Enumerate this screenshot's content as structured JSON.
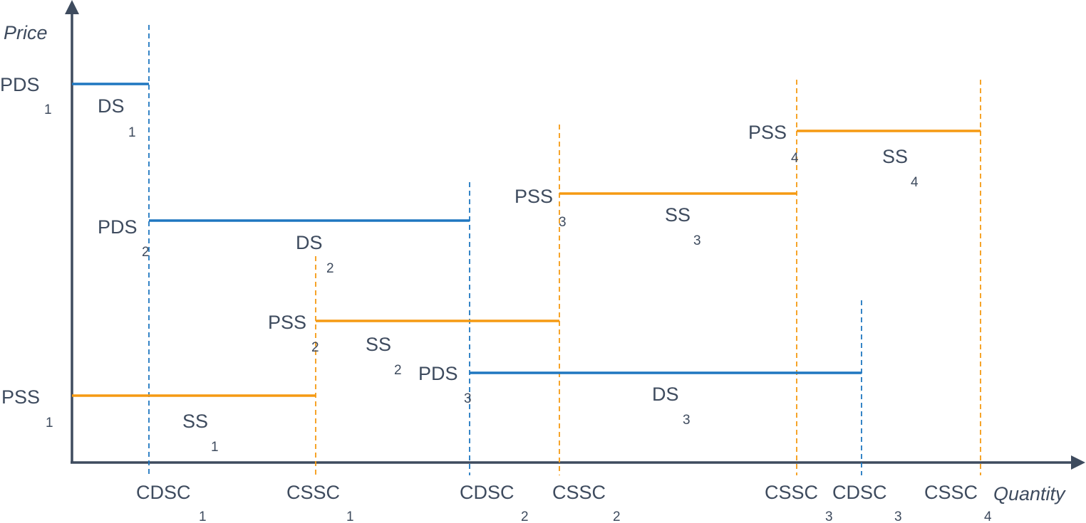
{
  "axes": {
    "y_title": "Price",
    "x_title": "Quantity"
  },
  "colors": {
    "axis": "#3e4b5e",
    "demand": "#1f77c0",
    "supply": "#f59a12",
    "text": "#3e4b5e"
  },
  "steps": [
    {
      "id": "ds1",
      "kind": "demand",
      "price_label": {
        "main": "PDS",
        "sub": "1"
      },
      "segment_label": {
        "main": "DS",
        "sub": "1"
      }
    },
    {
      "id": "ds2",
      "kind": "demand",
      "price_label": {
        "main": "PDS",
        "sub": "2"
      },
      "segment_label": {
        "main": "DS",
        "sub": "2"
      }
    },
    {
      "id": "ds3",
      "kind": "demand",
      "price_label": {
        "main": "PDS",
        "sub": "3"
      },
      "segment_label": {
        "main": "DS",
        "sub": "3"
      }
    },
    {
      "id": "ss1",
      "kind": "supply",
      "price_label": {
        "main": "PSS",
        "sub": "1"
      },
      "segment_label": {
        "main": "SS",
        "sub": "1"
      }
    },
    {
      "id": "ss2",
      "kind": "supply",
      "price_label": {
        "main": "PSS",
        "sub": "2"
      },
      "segment_label": {
        "main": "SS",
        "sub": "2"
      }
    },
    {
      "id": "ss3",
      "kind": "supply",
      "price_label": {
        "main": "PSS",
        "sub": "3"
      },
      "segment_label": {
        "main": "SS",
        "sub": "3"
      }
    },
    {
      "id": "ss4",
      "kind": "supply",
      "price_label": {
        "main": "PSS",
        "sub": "4"
      },
      "segment_label": {
        "main": "SS",
        "sub": "4"
      }
    }
  ],
  "quantity_marks": [
    {
      "id": "cdsc1",
      "kind": "demand",
      "label": {
        "main": "CDSC",
        "sub": "1"
      }
    },
    {
      "id": "cssc1",
      "kind": "supply",
      "label": {
        "main": "CSSC",
        "sub": "1"
      }
    },
    {
      "id": "cdsc2",
      "kind": "demand",
      "label": {
        "main": "CDSC",
        "sub": "2"
      }
    },
    {
      "id": "cssc2",
      "kind": "supply",
      "label": {
        "main": "CSSC",
        "sub": "2"
      }
    },
    {
      "id": "cssc3",
      "kind": "supply",
      "label": {
        "main": "CSSC",
        "sub": "3"
      }
    },
    {
      "id": "cdsc3",
      "kind": "demand",
      "label": {
        "main": "CDSC",
        "sub": "3"
      }
    },
    {
      "id": "cssc4",
      "kind": "supply",
      "label": {
        "main": "CSSC",
        "sub": "4"
      }
    }
  ]
}
